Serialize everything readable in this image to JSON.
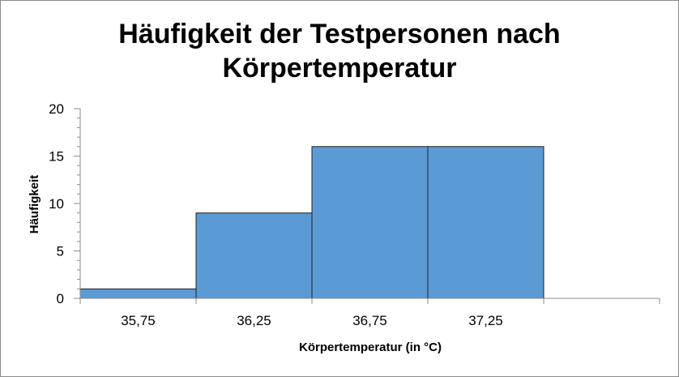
{
  "chart_data": {
    "type": "bar",
    "title_line1": "Häufigkeit der Testpersonen nach",
    "title_line2": "Körpertemperatur",
    "xlabel": "Körpertemperatur  (in °C)",
    "ylabel": "Häufigkeit",
    "categories": [
      "35,75",
      "36,25",
      "36,75",
      "37,25",
      ""
    ],
    "values": [
      1,
      9,
      16,
      16,
      0
    ],
    "ylim": [
      0,
      20
    ],
    "yticks": [
      0,
      5,
      10,
      15,
      20
    ],
    "grid": false,
    "legend": "none",
    "colors": {
      "bar_fill": "#5b9bd5",
      "bar_stroke": "#1f1f1f",
      "axis": "#8c8c8c"
    }
  }
}
